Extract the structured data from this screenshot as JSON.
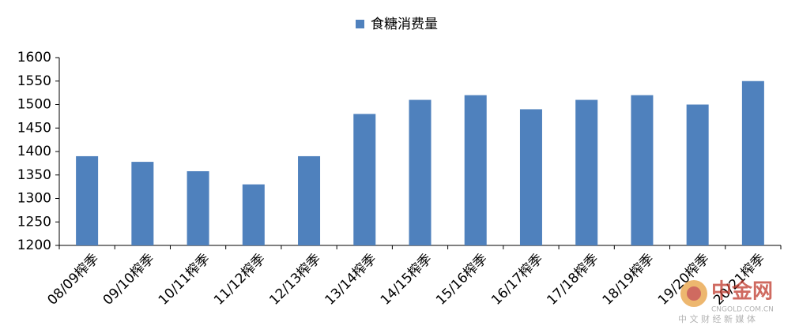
{
  "chart_data": {
    "type": "bar",
    "categories": [
      "08/09榨季",
      "09/10榨季",
      "10/11榨季",
      "11/12榨季",
      "12/13榨季",
      "13/14榨季",
      "14/15榨季",
      "15/16榨季",
      "16/17榨季",
      "17/18榨季",
      "18/19榨季",
      "19/20榨季",
      "20/21榨季"
    ],
    "series": [
      {
        "name": "食糖消费量",
        "color": "#4f81bd",
        "values": [
          1390,
          1378,
          1358,
          1330,
          1390,
          1480,
          1510,
          1520,
          1490,
          1510,
          1520,
          1500,
          1550
        ]
      }
    ],
    "ylim": [
      1200,
      1600
    ],
    "yticks": [
      1200,
      1250,
      1300,
      1350,
      1400,
      1450,
      1500,
      1550,
      1600
    ],
    "grid": false,
    "legend": "top"
  },
  "watermark": {
    "name": "中金网",
    "domain": "CNGOLD.COM.CN",
    "slogan": "中 文 财 经 新 媒 体"
  }
}
